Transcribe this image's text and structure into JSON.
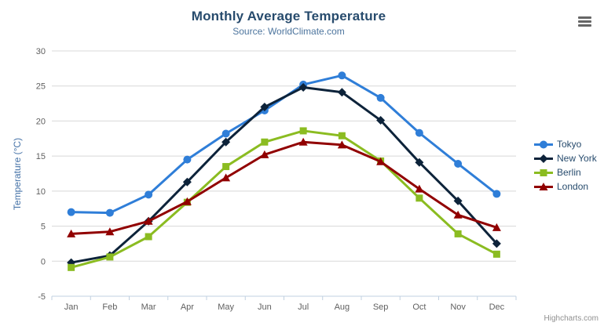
{
  "title": "Monthly Average Temperature",
  "subtitle": "Source: WorldClimate.com",
  "credits": "Highcharts.com",
  "icons": {
    "menu": "hamburger-icon"
  },
  "colors": {
    "title": "#274b6d",
    "subtitle": "#4d759e",
    "axis_title": "#4572a7",
    "axis_label": "#606060",
    "grid_line": "#d8d8d8",
    "axis_line": "#c0d0e0",
    "legend_text": "#274b6d",
    "credits": "#909090"
  },
  "chart_data": {
    "type": "line",
    "title": "Monthly Average Temperature",
    "subtitle": "Source: WorldClimate.com",
    "xlabel": "",
    "ylabel": "Temperature (°C)",
    "ylim": [
      -5,
      30
    ],
    "yticks": [
      -5,
      0,
      5,
      10,
      15,
      20,
      25,
      30
    ],
    "grid": true,
    "legend_position": "right",
    "categories": [
      "Jan",
      "Feb",
      "Mar",
      "Apr",
      "May",
      "Jun",
      "Jul",
      "Aug",
      "Sep",
      "Oct",
      "Nov",
      "Dec"
    ],
    "series": [
      {
        "name": "Tokyo",
        "color": "#2f7ed8",
        "marker": "circle",
        "values": [
          7.0,
          6.9,
          9.5,
          14.5,
          18.2,
          21.5,
          25.2,
          26.5,
          23.3,
          18.3,
          13.9,
          9.6
        ]
      },
      {
        "name": "New York",
        "color": "#0d233a",
        "marker": "diamond",
        "values": [
          -0.2,
          0.8,
          5.7,
          11.3,
          17.0,
          22.0,
          24.8,
          24.1,
          20.1,
          14.1,
          8.6,
          2.5
        ]
      },
      {
        "name": "Berlin",
        "color": "#8bbc21",
        "marker": "square",
        "values": [
          -0.9,
          0.6,
          3.5,
          8.4,
          13.5,
          17.0,
          18.6,
          17.9,
          14.3,
          9.0,
          3.9,
          1.0
        ]
      },
      {
        "name": "London",
        "color": "#910000",
        "marker": "triangle",
        "values": [
          3.9,
          4.2,
          5.7,
          8.5,
          11.9,
          15.2,
          17.0,
          16.6,
          14.2,
          10.3,
          6.6,
          4.8
        ]
      }
    ]
  }
}
